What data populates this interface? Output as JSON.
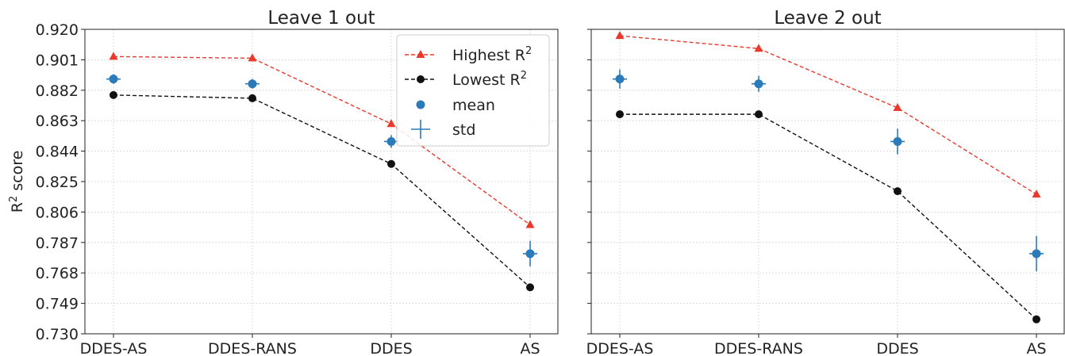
{
  "chart_data": [
    {
      "type": "line",
      "title": "Leave 1 out",
      "ylabel": "R",
      "ylabel_sup": "2",
      "ylabel_suffix": " score",
      "ylim": [
        0.73,
        0.92
      ],
      "yticks": [
        "0.920",
        "0.901",
        "0.882",
        "0.863",
        "0.844",
        "0.825",
        "0.806",
        "0.787",
        "0.768",
        "0.749",
        "0.730"
      ],
      "categories": [
        "DDES-AS",
        "DDES-RANS",
        "DDES",
        "AS"
      ],
      "grid": true,
      "legend_position": "top-right",
      "series": [
        {
          "name": "Highest R",
          "name_sup": "2",
          "style": "dashed-triangle",
          "color": "#e8392b",
          "values": [
            0.903,
            0.902,
            0.861,
            0.798
          ]
        },
        {
          "name": "Lowest R",
          "name_sup": "2",
          "style": "dashed-circle",
          "color": "#111111",
          "values": [
            0.879,
            0.877,
            0.836,
            0.759
          ]
        },
        {
          "name": "mean",
          "style": "marker",
          "color": "#2b7bba",
          "values": [
            0.889,
            0.886,
            0.85,
            0.78
          ]
        },
        {
          "name": "std",
          "style": "errorbar",
          "color": "#2b7bba",
          "values": [
            0.003,
            0.003,
            0.004,
            0.008
          ]
        }
      ]
    },
    {
      "type": "line",
      "title": "Leave 2 out",
      "ylim": [
        0.73,
        0.92
      ],
      "categories": [
        "DDES-AS",
        "DDES-RANS",
        "DDES",
        "AS"
      ],
      "grid": true,
      "series": [
        {
          "name": "Highest R",
          "name_sup": "2",
          "style": "dashed-triangle",
          "color": "#e8392b",
          "values": [
            0.916,
            0.908,
            0.871,
            0.817
          ]
        },
        {
          "name": "Lowest R",
          "name_sup": "2",
          "style": "dashed-circle",
          "color": "#111111",
          "values": [
            0.867,
            0.867,
            0.819,
            0.739
          ]
        },
        {
          "name": "mean",
          "style": "marker",
          "color": "#2b7bba",
          "values": [
            0.889,
            0.886,
            0.85,
            0.78
          ]
        },
        {
          "name": "std",
          "style": "errorbar",
          "color": "#2b7bba",
          "values": [
            0.006,
            0.005,
            0.008,
            0.011
          ]
        }
      ]
    }
  ]
}
